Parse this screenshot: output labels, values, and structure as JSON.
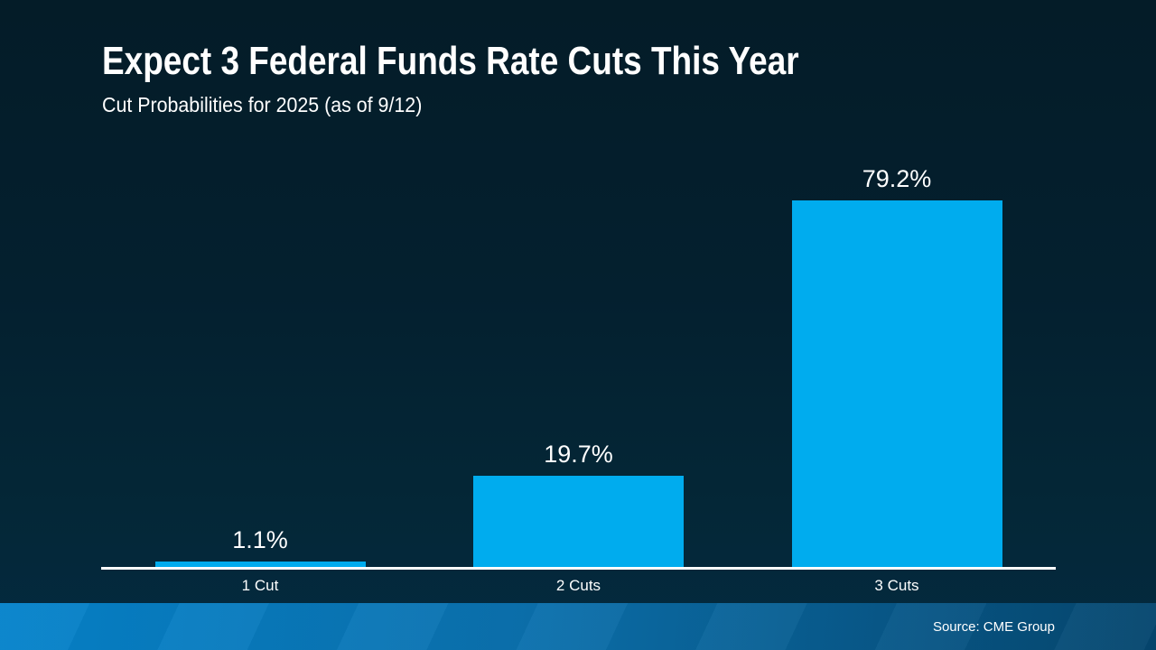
{
  "slide": {
    "title": "Expect 3 Federal Funds Rate Cuts This Year",
    "subtitle": "Cut Probabilities for 2025 (as of 9/12)",
    "source": "Source: CME Group"
  },
  "colors": {
    "background_top": "#041C28",
    "background_bottom": "#032A40",
    "bar": "#00ACEE",
    "axis": "#FFFFFF",
    "text": "#FFFFFF",
    "footer_gradient_left": "#0583CB",
    "footer_gradient_right": "#05466E"
  },
  "chart_data": {
    "type": "bar",
    "title": "Expect 3 Federal Funds Rate Cuts This Year",
    "subtitle": "Cut Probabilities for 2025 (as of 9/12)",
    "source": "Source: CME Group",
    "categories": [
      "1 Cut",
      "2 Cuts",
      "3 Cuts"
    ],
    "values": [
      1.1,
      19.7,
      79.2
    ],
    "value_labels": [
      "1.1%",
      "19.7%",
      "79.2%"
    ],
    "xlabel": "",
    "ylabel": "",
    "ylim": [
      0,
      91.5
    ],
    "grid": false,
    "legend": false,
    "bar_color": "#00ACEE",
    "data_labels_position": "above-bar",
    "baseline_color": "#FFFFFF"
  }
}
